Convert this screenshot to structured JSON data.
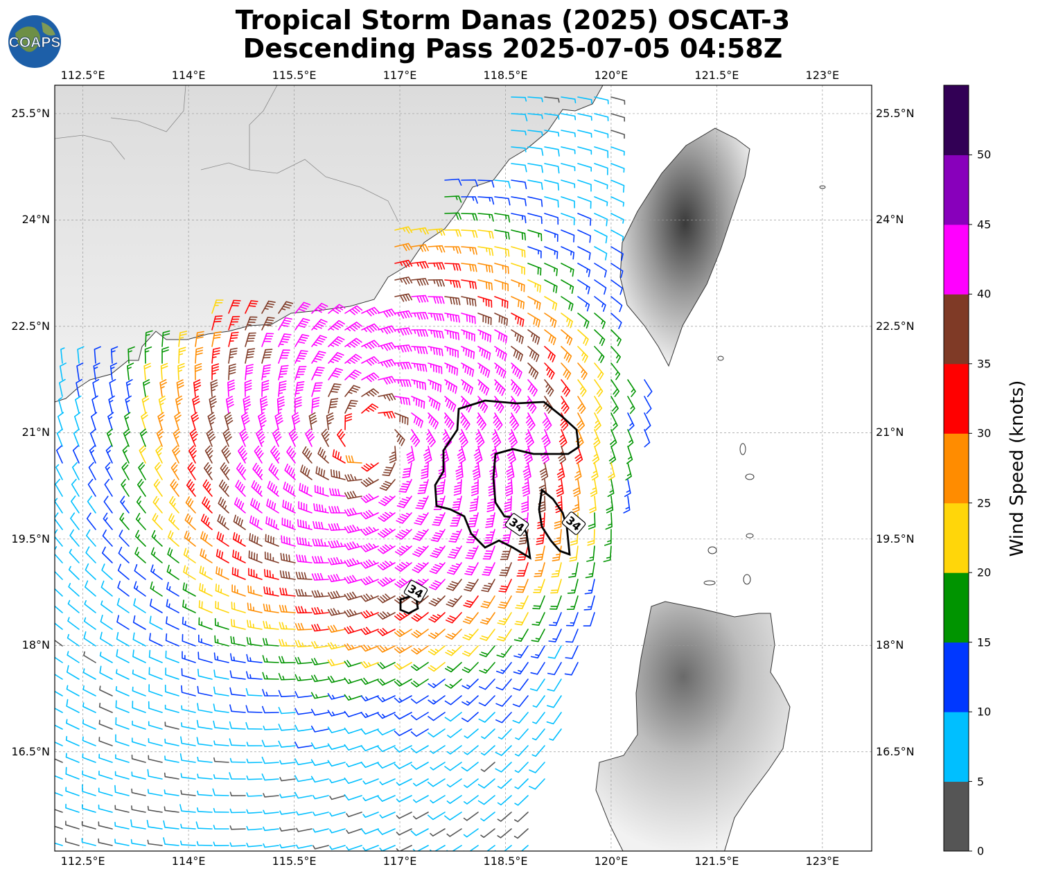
{
  "title": {
    "line1": "Tropical Storm Danas (2025) OSCAT-3",
    "line2": "Descending Pass 2025-07-05 04:58Z"
  },
  "logo": {
    "text": "COAPS",
    "icon": "globe-logo-icon"
  },
  "map": {
    "lon_labels": [
      "112.5°E",
      "114°E",
      "115.5°E",
      "117°E",
      "118.5°E",
      "120°E",
      "121.5°E",
      "123°E"
    ],
    "lat_labels": [
      "25.5°N",
      "24°N",
      "22.5°N",
      "21°N",
      "19.5°N",
      "18°N",
      "16.5°N"
    ],
    "lon_range": [
      112.1,
      123.7
    ],
    "lat_range": [
      15.1,
      25.9
    ],
    "storm_center": {
      "lon": 116.6,
      "lat": 20.9
    },
    "contour_labels": [
      "34",
      "34",
      "34"
    ],
    "contour_knots": 34
  },
  "colorbar": {
    "label": "Wind Speed (knots)",
    "ticks": [
      "0",
      "5",
      "10",
      "15",
      "20",
      "25",
      "30",
      "35",
      "40",
      "45",
      "50"
    ],
    "colors": [
      "#555555",
      "#00bfff",
      "#0038ff",
      "#009400",
      "#ffd60a",
      "#ff8c00",
      "#ff0000",
      "#7f3a26",
      "#ff00ff",
      "#8800bb",
      "#320055"
    ]
  }
}
